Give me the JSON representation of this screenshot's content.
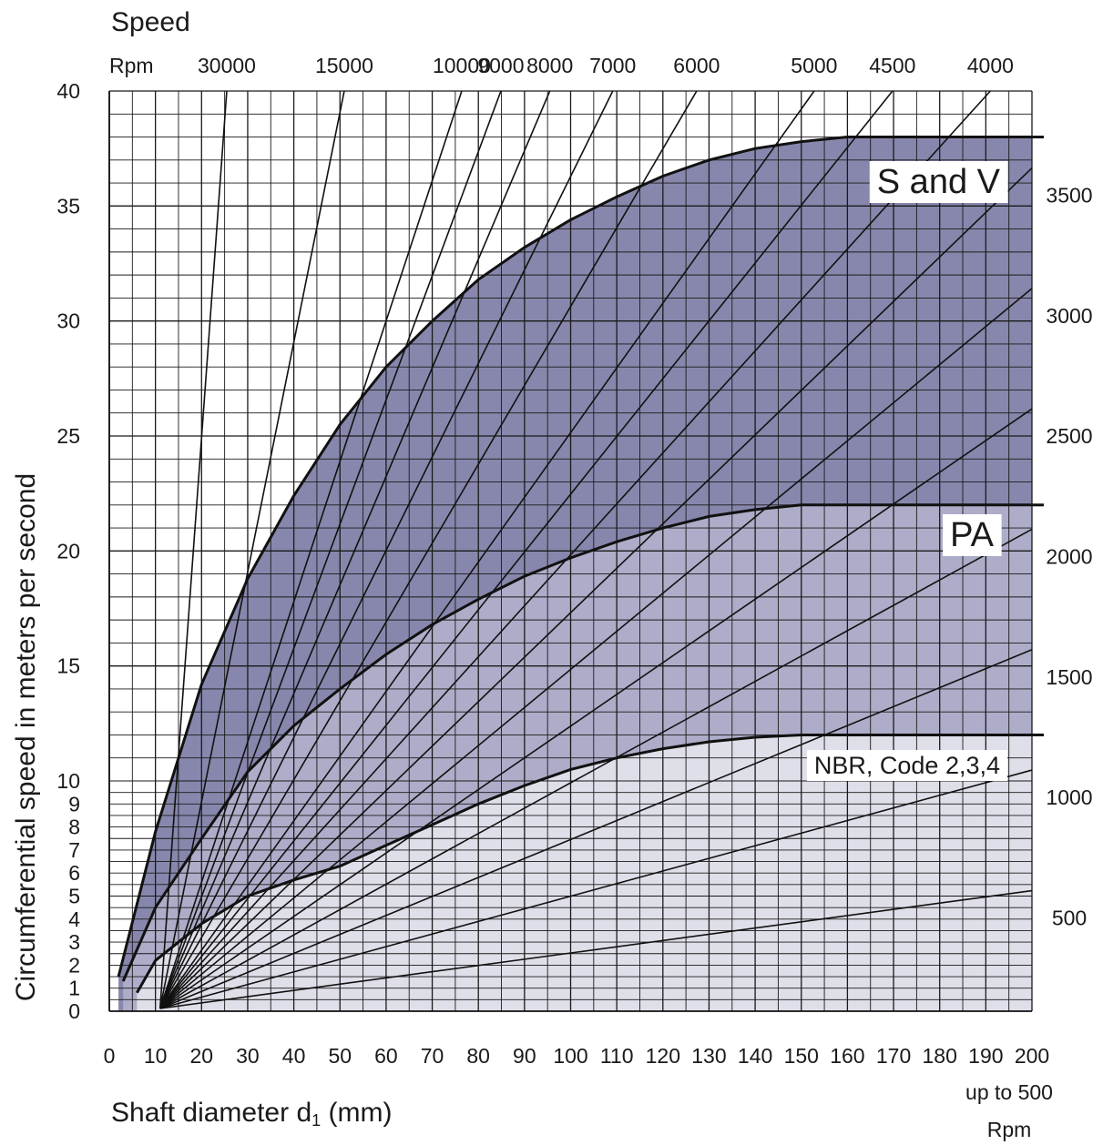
{
  "chart_data": {
    "type": "line",
    "title": "Speed",
    "xlabel_parts": {
      "pre": "Shaft diameter d",
      "sub": "1",
      "post": " (mm)"
    },
    "ylabel": "Circumferential speed in meters per second",
    "rpm_label": "Rpm",
    "bottom_note": [
      "up to 500",
      "Rpm"
    ],
    "xlim": [
      0,
      200
    ],
    "ylim": [
      0,
      40
    ],
    "x_ticks": [
      0,
      10,
      20,
      30,
      40,
      50,
      60,
      70,
      80,
      90,
      100,
      110,
      120,
      130,
      140,
      150,
      160,
      170,
      180,
      190,
      200
    ],
    "y_ticks_upper": [
      10,
      15,
      20,
      25,
      30,
      35,
      40
    ],
    "y_ticks_lower": [
      0,
      1,
      2,
      3,
      4,
      5,
      6,
      7,
      8,
      9
    ],
    "grid": true,
    "rpm_lines": [
      {
        "rpm": "30000",
        "label_side": "top"
      },
      {
        "rpm": "15000",
        "label_side": "top"
      },
      {
        "rpm": "10000",
        "label_side": "top"
      },
      {
        "rpm": "9000",
        "label_side": "top"
      },
      {
        "rpm": "8000",
        "label_side": "top"
      },
      {
        "rpm": "7000",
        "label_side": "top"
      },
      {
        "rpm": "6000",
        "label_side": "top"
      },
      {
        "rpm": "5000",
        "label_side": "top"
      },
      {
        "rpm": "4500",
        "label_side": "top"
      },
      {
        "rpm": "4000",
        "label_side": "top"
      },
      {
        "rpm": "3500",
        "label_side": "right"
      },
      {
        "rpm": "3000",
        "label_side": "right"
      },
      {
        "rpm": "2500",
        "label_side": "right"
      },
      {
        "rpm": "2000",
        "label_side": "right"
      },
      {
        "rpm": "1500",
        "label_side": "right"
      },
      {
        "rpm": "1000",
        "label_side": "right"
      },
      {
        "rpm": "500",
        "label_side": "right"
      }
    ],
    "regions": [
      {
        "name": "S and V",
        "color": "#8787ad",
        "max_speed": 38,
        "boundary": [
          [
            2,
            1.5
          ],
          [
            10,
            7.8
          ],
          [
            20,
            14.2
          ],
          [
            30,
            18.8
          ],
          [
            40,
            22.4
          ],
          [
            50,
            25.5
          ],
          [
            60,
            28
          ],
          [
            70,
            30
          ],
          [
            80,
            31.8
          ],
          [
            90,
            33.2
          ],
          [
            100,
            34.4
          ],
          [
            110,
            35.4
          ],
          [
            120,
            36.3
          ],
          [
            130,
            37
          ],
          [
            140,
            37.5
          ],
          [
            150,
            37.8
          ],
          [
            160,
            38
          ],
          [
            170,
            38
          ],
          [
            200,
            38
          ]
        ]
      },
      {
        "name": "PA",
        "color": "#adadc9",
        "max_speed": 22,
        "boundary": [
          [
            3,
            1.3
          ],
          [
            10,
            4.5
          ],
          [
            20,
            7.5
          ],
          [
            30,
            10.4
          ],
          [
            40,
            12.4
          ],
          [
            50,
            14
          ],
          [
            60,
            15.5
          ],
          [
            70,
            16.8
          ],
          [
            80,
            17.9
          ],
          [
            90,
            18.9
          ],
          [
            100,
            19.7
          ],
          [
            110,
            20.4
          ],
          [
            120,
            21
          ],
          [
            130,
            21.5
          ],
          [
            140,
            21.8
          ],
          [
            150,
            22
          ],
          [
            200,
            22
          ]
        ]
      },
      {
        "name": "NBR, Code 2,3,4",
        "color": "#dfdfe9",
        "max_speed": 12,
        "boundary": [
          [
            6,
            0.8
          ],
          [
            10,
            2.2
          ],
          [
            20,
            3.8
          ],
          [
            30,
            5
          ],
          [
            40,
            5.7
          ],
          [
            50,
            6.3
          ],
          [
            60,
            7.2
          ],
          [
            70,
            8.1
          ],
          [
            80,
            9
          ],
          [
            90,
            9.8
          ],
          [
            100,
            10.5
          ],
          [
            110,
            11
          ],
          [
            120,
            11.4
          ],
          [
            130,
            11.7
          ],
          [
            140,
            11.9
          ],
          [
            150,
            12
          ],
          [
            200,
            12
          ]
        ]
      }
    ]
  }
}
